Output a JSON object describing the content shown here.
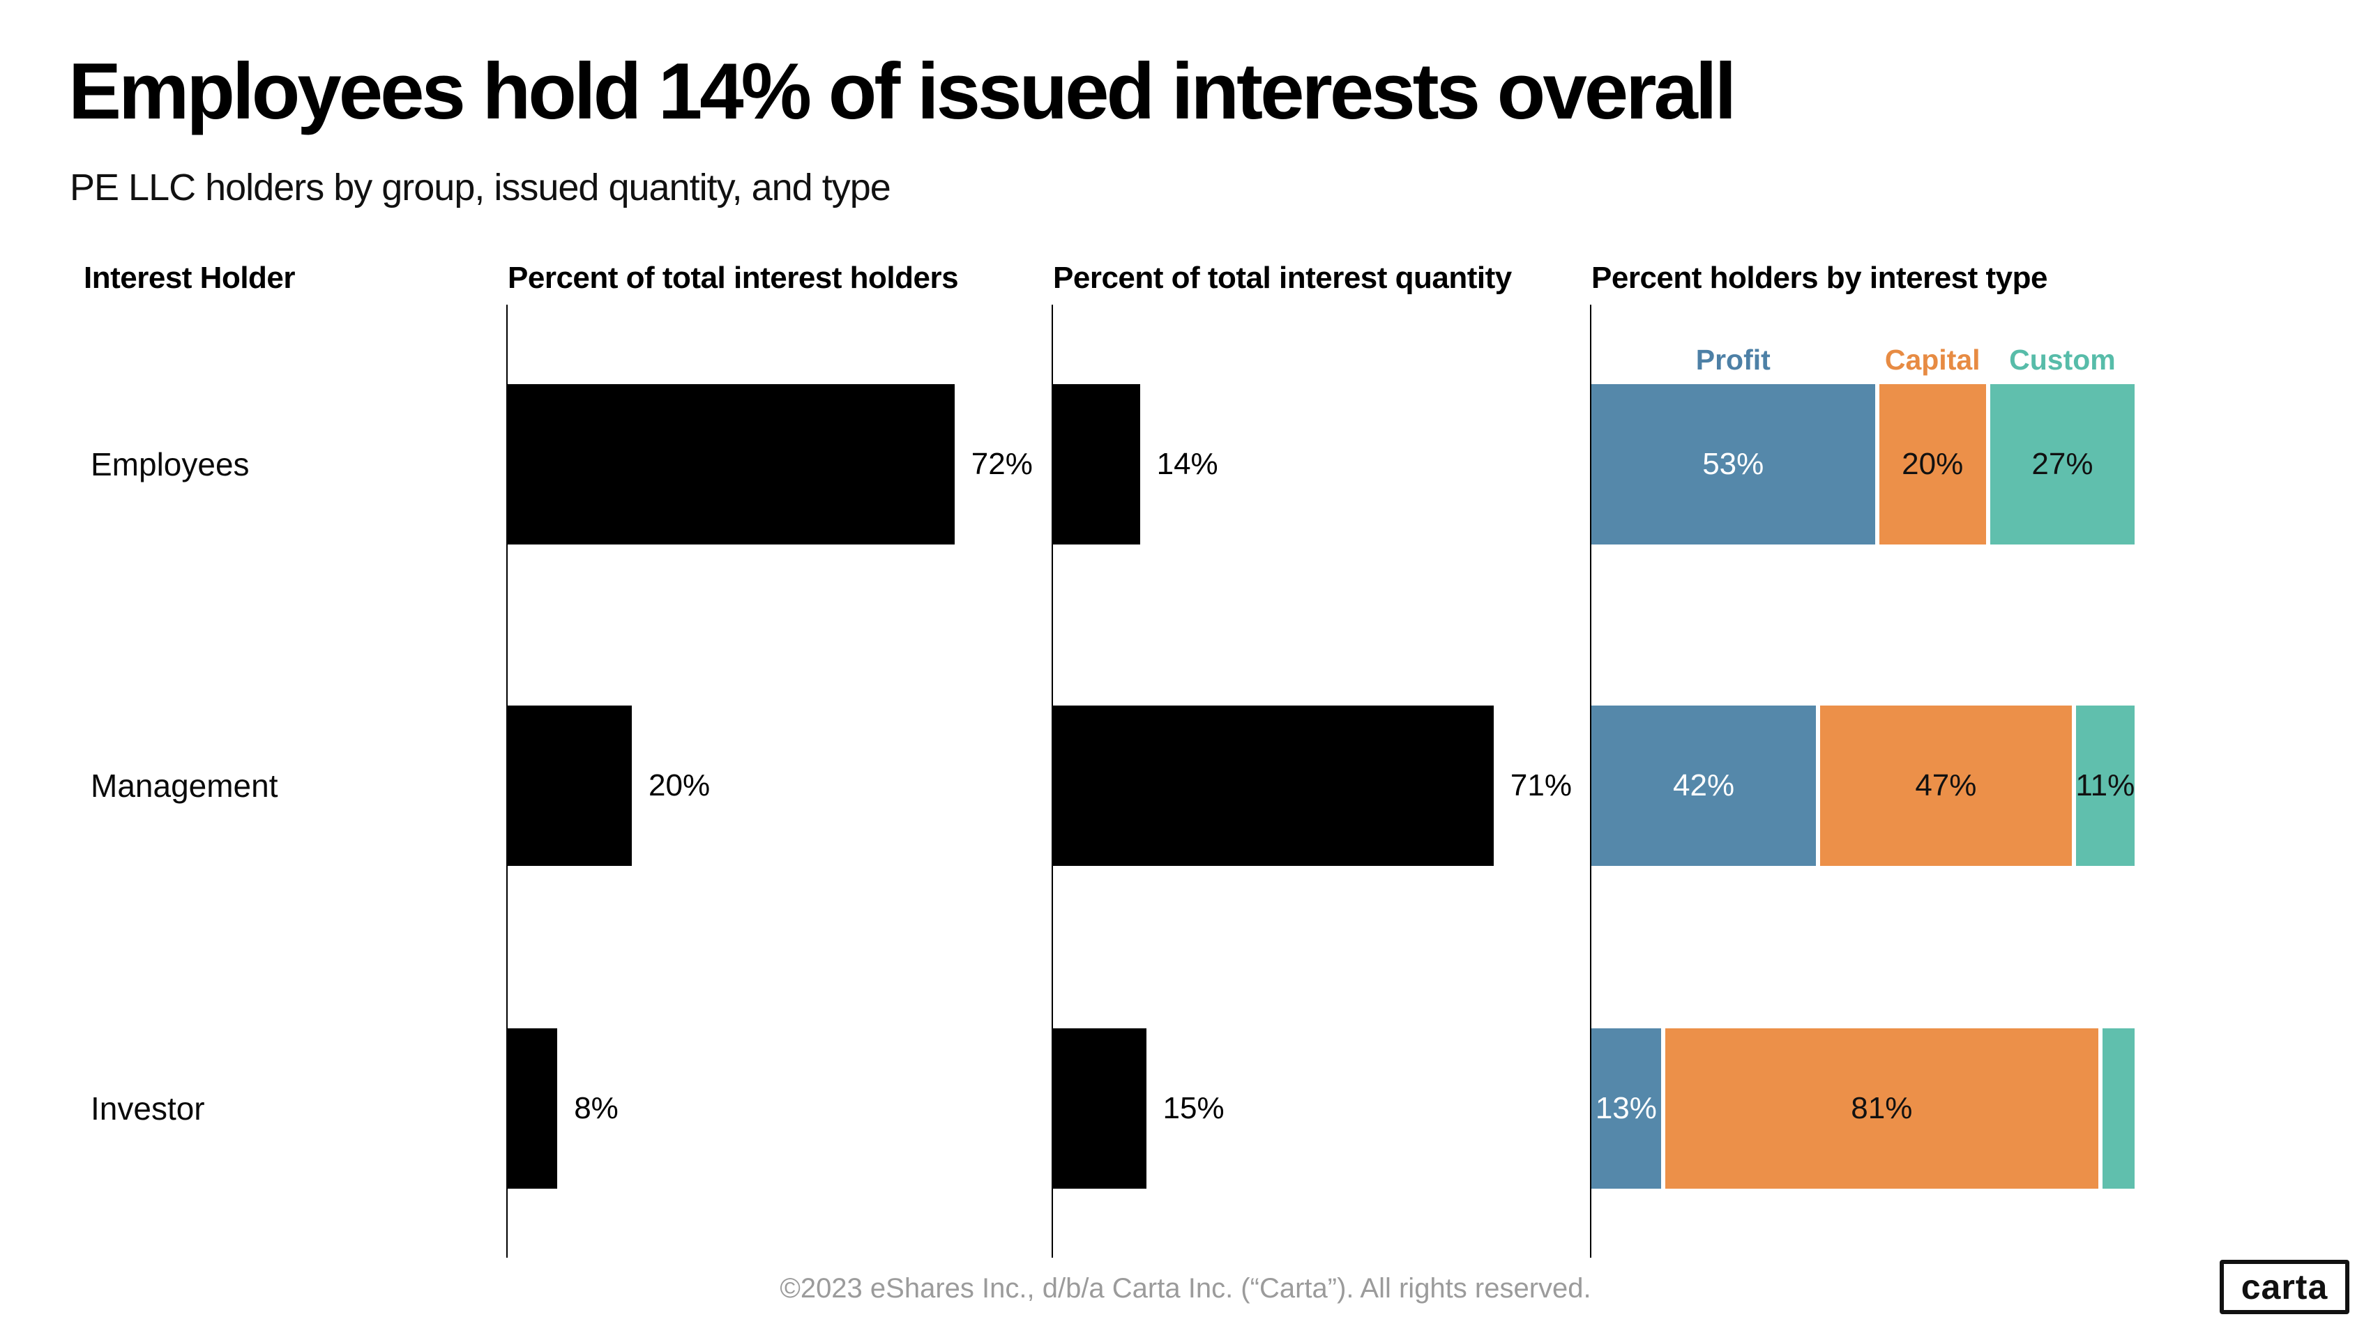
{
  "header": {
    "title": "Employees hold 14% of issued interests overall",
    "subtitle": "PE LLC holders by group, issued quantity, and type"
  },
  "columns": {
    "holder": "Interest Holder",
    "holders": "Percent of total interest holders",
    "quantity": "Percent of total interest quantity",
    "type": "Percent holders by interest type"
  },
  "legend": {
    "profit": "Profit",
    "capital": "Capital",
    "custom": "Custom"
  },
  "colors": {
    "profit_fill": "#5588aa",
    "capital_fill": "#ec9049",
    "custom_fill": "#60bfad",
    "profit_legend_text": "#4d80a6",
    "capital_legend_text": "#e78b43",
    "custom_legend_text": "#57bca9",
    "bar_fill": "#000000",
    "footer_text": "#9b9b9b"
  },
  "rows": [
    {
      "label": "Employees",
      "holders_pct": 72,
      "holders_label": "72%",
      "quantity_pct": 14,
      "quantity_label": "14%",
      "type": {
        "profit": 53,
        "profit_label": "53%",
        "capital": 20,
        "capital_label": "20%",
        "custom": 27,
        "custom_label": "27%"
      }
    },
    {
      "label": "Management",
      "holders_pct": 20,
      "holders_label": "20%",
      "quantity_pct": 71,
      "quantity_label": "71%",
      "type": {
        "profit": 42,
        "profit_label": "42%",
        "capital": 47,
        "capital_label": "47%",
        "custom": 11,
        "custom_label": "11%"
      }
    },
    {
      "label": "Investor",
      "holders_pct": 8,
      "holders_label": "8%",
      "quantity_pct": 15,
      "quantity_label": "15%",
      "type": {
        "profit": 13,
        "profit_label": "13%",
        "capital": 81,
        "capital_label": "81%",
        "custom": 6,
        "custom_label": ""
      }
    }
  ],
  "footer": {
    "copyright": "©2023 eShares Inc., d/b/a Carta Inc. (“Carta”). All rights reserved.",
    "logo": "carta"
  },
  "chart_data": {
    "type": "bar",
    "orientation": "horizontal",
    "title": "Employees hold 14% of issued interests overall",
    "subtitle": "PE LLC holders by group, issued quantity, and type",
    "categories": [
      "Employees",
      "Management",
      "Investor"
    ],
    "xlim": [
      0,
      100
    ],
    "unit": "%",
    "grid": false,
    "series": [
      {
        "name": "Percent of total interest holders",
        "type": "bar",
        "color": "#000000",
        "values": [
          72,
          20,
          8
        ]
      },
      {
        "name": "Percent of total interest quantity",
        "type": "bar",
        "color": "#000000",
        "values": [
          14,
          71,
          15
        ]
      },
      {
        "name": "Percent holders by interest type",
        "type": "stacked-bar",
        "legend_position": "top",
        "segments": [
          {
            "name": "Profit",
            "color": "#5588aa",
            "values": [
              53,
              42,
              13
            ]
          },
          {
            "name": "Capital",
            "color": "#ec9049",
            "values": [
              20,
              47,
              81
            ]
          },
          {
            "name": "Custom",
            "color": "#60bfad",
            "values": [
              27,
              11,
              6
            ]
          }
        ]
      }
    ]
  }
}
